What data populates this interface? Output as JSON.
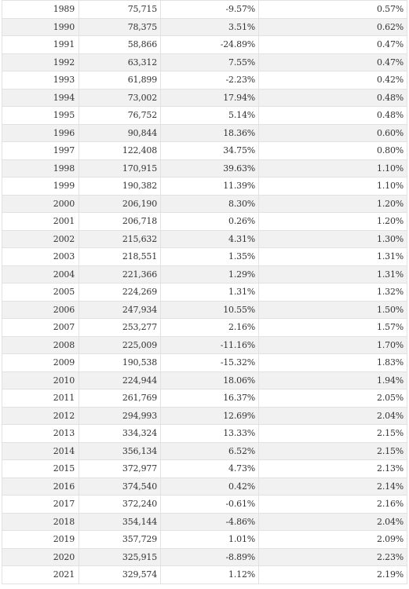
{
  "table": {
    "rows": [
      {
        "year": "1989",
        "value": "75,715",
        "change": "-9.57%",
        "share": "0.57%"
      },
      {
        "year": "1990",
        "value": "78,375",
        "change": "3.51%",
        "share": "0.62%"
      },
      {
        "year": "1991",
        "value": "58,866",
        "change": "-24.89%",
        "share": "0.47%"
      },
      {
        "year": "1992",
        "value": "63,312",
        "change": "7.55%",
        "share": "0.47%"
      },
      {
        "year": "1993",
        "value": "61,899",
        "change": "-2.23%",
        "share": "0.42%"
      },
      {
        "year": "1994",
        "value": "73,002",
        "change": "17.94%",
        "share": "0.48%"
      },
      {
        "year": "1995",
        "value": "76,752",
        "change": "5.14%",
        "share": "0.48%"
      },
      {
        "year": "1996",
        "value": "90,844",
        "change": "18.36%",
        "share": "0.60%"
      },
      {
        "year": "1997",
        "value": "122,408",
        "change": "34.75%",
        "share": "0.80%"
      },
      {
        "year": "1998",
        "value": "170,915",
        "change": "39.63%",
        "share": "1.10%"
      },
      {
        "year": "1999",
        "value": "190,382",
        "change": "11.39%",
        "share": "1.10%"
      },
      {
        "year": "2000",
        "value": "206,190",
        "change": "8.30%",
        "share": "1.20%"
      },
      {
        "year": "2001",
        "value": "206,718",
        "change": "0.26%",
        "share": "1.20%"
      },
      {
        "year": "2002",
        "value": "215,632",
        "change": "4.31%",
        "share": "1.30%"
      },
      {
        "year": "2003",
        "value": "218,551",
        "change": "1.35%",
        "share": "1.31%"
      },
      {
        "year": "2004",
        "value": "221,366",
        "change": "1.29%",
        "share": "1.31%"
      },
      {
        "year": "2005",
        "value": "224,269",
        "change": "1.31%",
        "share": "1.32%"
      },
      {
        "year": "2006",
        "value": "247,934",
        "change": "10.55%",
        "share": "1.50%"
      },
      {
        "year": "2007",
        "value": "253,277",
        "change": "2.16%",
        "share": "1.57%"
      },
      {
        "year": "2008",
        "value": "225,009",
        "change": "-11.16%",
        "share": "1.70%"
      },
      {
        "year": "2009",
        "value": "190,538",
        "change": "-15.32%",
        "share": "1.83%"
      },
      {
        "year": "2010",
        "value": "224,944",
        "change": "18.06%",
        "share": "1.94%"
      },
      {
        "year": "2011",
        "value": "261,769",
        "change": "16.37%",
        "share": "2.05%"
      },
      {
        "year": "2012",
        "value": "294,993",
        "change": "12.69%",
        "share": "2.04%"
      },
      {
        "year": "2013",
        "value": "334,324",
        "change": "13.33%",
        "share": "2.15%"
      },
      {
        "year": "2014",
        "value": "356,134",
        "change": "6.52%",
        "share": "2.15%"
      },
      {
        "year": "2015",
        "value": "372,977",
        "change": "4.73%",
        "share": "2.13%"
      },
      {
        "year": "2016",
        "value": "374,540",
        "change": "0.42%",
        "share": "2.14%"
      },
      {
        "year": "2017",
        "value": "372,240",
        "change": "-0.61%",
        "share": "2.16%"
      },
      {
        "year": "2018",
        "value": "354,144",
        "change": "-4.86%",
        "share": "2.04%"
      },
      {
        "year": "2019",
        "value": "357,729",
        "change": "1.01%",
        "share": "2.09%"
      },
      {
        "year": "2020",
        "value": "325,915",
        "change": "-8.89%",
        "share": "2.23%"
      },
      {
        "year": "2021",
        "value": "329,574",
        "change": "1.12%",
        "share": "2.19%"
      }
    ]
  }
}
